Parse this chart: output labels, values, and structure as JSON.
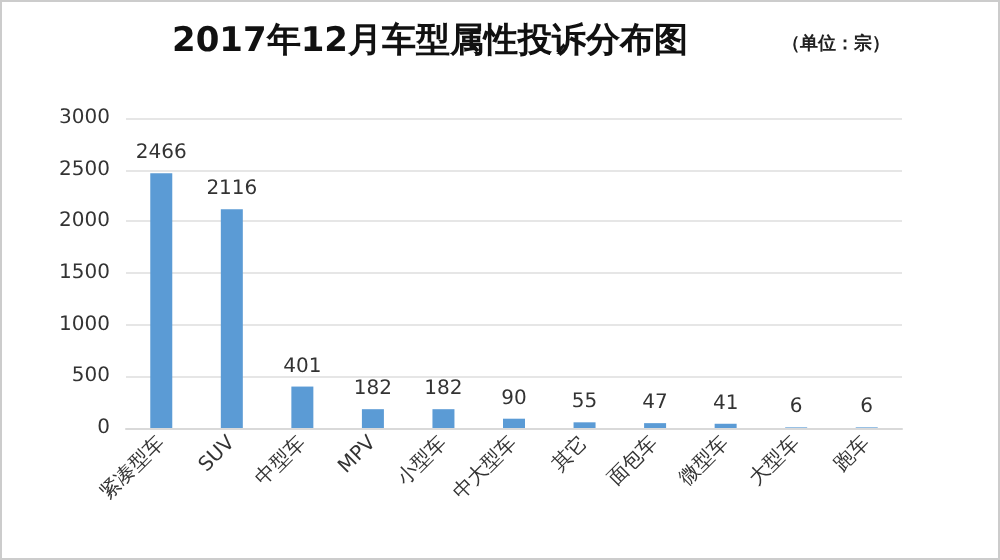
{
  "chart_data": {
    "type": "bar",
    "title": "2017年12月车型属性投诉分布图",
    "subtitle": "（单位：宗）",
    "categories": [
      "紧凑型车",
      "SUV",
      "中型车",
      "MPV",
      "小型车",
      "中大型车",
      "其它",
      "面包车",
      "微型车",
      "大型车",
      "跑车"
    ],
    "values": [
      2466,
      2116,
      401,
      182,
      182,
      90,
      55,
      47,
      41,
      6,
      6
    ],
    "color": "#5b9bd5",
    "ylim": [
      0,
      3000
    ],
    "yticks": [
      0,
      500,
      1000,
      1500,
      2000,
      2500,
      3000
    ],
    "grid": true,
    "data_labels": true
  }
}
